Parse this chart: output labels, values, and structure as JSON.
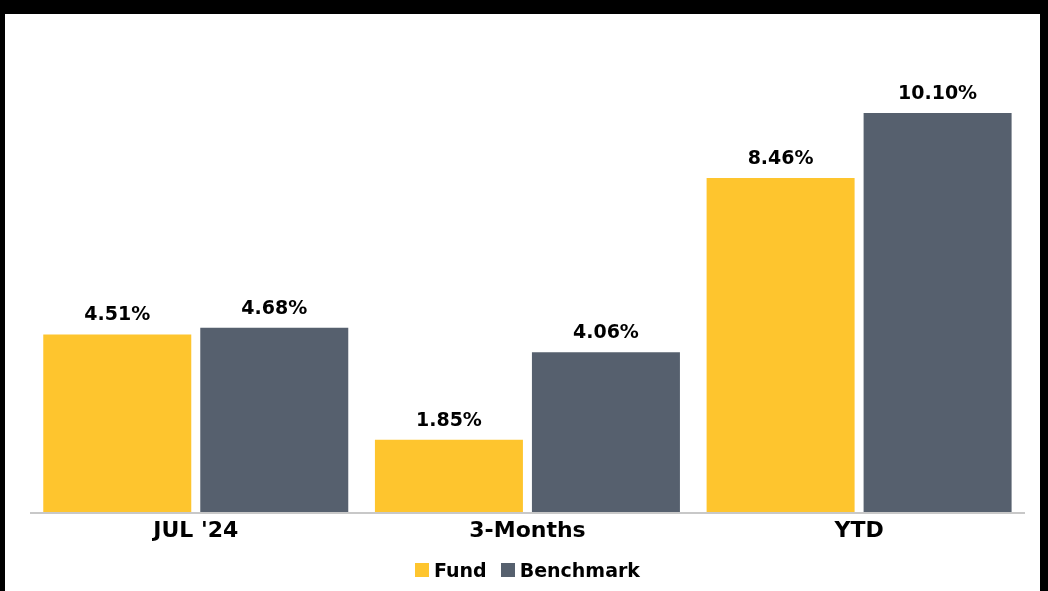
{
  "chart_data": {
    "type": "bar",
    "categories": [
      "JUL '24",
      "3-Months",
      "YTD"
    ],
    "series": [
      {
        "name": "Fund",
        "color": "#fec52e",
        "values": [
          4.51,
          1.85,
          8.46
        ],
        "value_labels": [
          "4.51%",
          "1.85%",
          "8.46%"
        ]
      },
      {
        "name": "Benchmark",
        "color": "#56606e",
        "values": [
          4.68,
          4.06,
          10.1
        ],
        "value_labels": [
          "4.68%",
          "4.06%",
          "10.10%"
        ]
      }
    ],
    "legend": "bottom",
    "grid": false
  }
}
